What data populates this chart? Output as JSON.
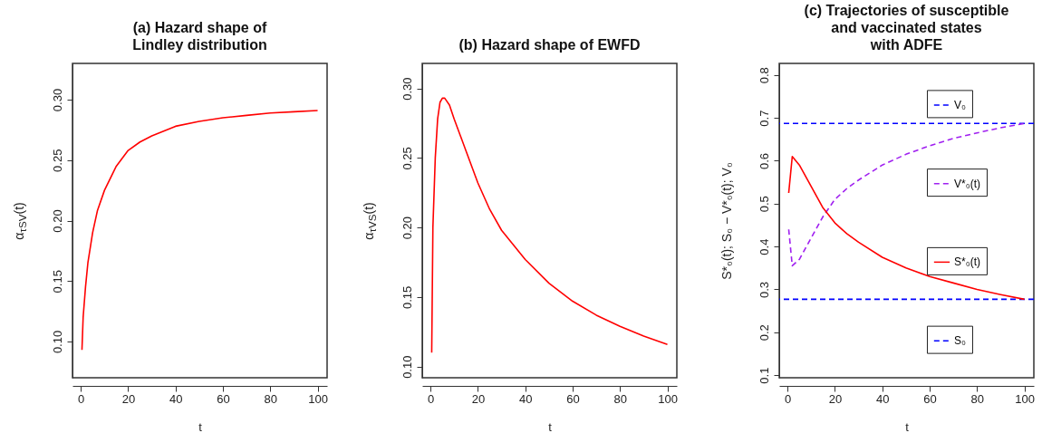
{
  "chart_data": [
    {
      "type": "line",
      "title": "(a) Hazard shape of\nLindley distribution",
      "xlabel": "t",
      "ylabel": "α$_{τSV}$(t)",
      "x": [
        0.5,
        1,
        2,
        3,
        5,
        7,
        10,
        15,
        20,
        25,
        30,
        40,
        50,
        60,
        70,
        80,
        90,
        100
      ],
      "series": [
        {
          "color": "#ff0000",
          "values": [
            0.093,
            0.12,
            0.145,
            0.165,
            0.19,
            0.208,
            0.225,
            0.245,
            0.258,
            0.265,
            0.27,
            0.278,
            0.282,
            0.285,
            0.287,
            0.289,
            0.29,
            0.291
          ]
        }
      ],
      "xlim": [
        -3.5,
        104
      ],
      "ylim": [
        0.07,
        0.33
      ],
      "xticks": [
        0,
        20,
        40,
        60,
        80,
        100
      ],
      "yticks": [
        {
          "value": 0.1,
          "label": "0.10"
        },
        0.15,
        {
          "value": 0.2,
          "label": "0.20"
        },
        0.25,
        {
          "value": 0.3,
          "label": "0.30"
        }
      ]
    },
    {
      "type": "line",
      "title": "(b) Hazard shape of EWFD",
      "xlabel": "t",
      "ylabel": "α$_{τVS}$(t)",
      "x": [
        0.5,
        1,
        2,
        3,
        4,
        5,
        6,
        8,
        10,
        15,
        20,
        25,
        30,
        40,
        50,
        60,
        70,
        80,
        90,
        100
      ],
      "series": [
        {
          "color": "#ff0000",
          "values": [
            0.11,
            0.2,
            0.25,
            0.278,
            0.29,
            0.293,
            0.293,
            0.288,
            0.278,
            0.255,
            0.232,
            0.213,
            0.198,
            0.177,
            0.16,
            0.147,
            0.137,
            0.129,
            0.122,
            0.116
          ]
        }
      ],
      "xlim": [
        -3.5,
        104
      ],
      "ylim": [
        0.092,
        0.318
      ],
      "xticks": [
        0,
        20,
        40,
        60,
        80,
        100
      ],
      "yticks": [
        {
          "value": 0.1,
          "label": "0.10"
        },
        0.15,
        {
          "value": 0.2,
          "label": "0.20"
        },
        0.25,
        {
          "value": 0.3,
          "label": "0.30"
        }
      ]
    },
    {
      "type": "line",
      "title": "(c) Trajectories of susceptible\nand vaccinated states\nwith ADFE",
      "xlabel": "t",
      "ylabel": "S*₀(t); S₀ − V*₀(t); V₀",
      "x": [
        0.5,
        2,
        5,
        10,
        15,
        20,
        25,
        30,
        40,
        50,
        60,
        70,
        80,
        90,
        100
      ],
      "series": [
        {
          "name": "V*₀(t)",
          "color": "#a020f0",
          "line_style": "dashed",
          "values": [
            0.44,
            0.355,
            0.37,
            0.42,
            0.47,
            0.51,
            0.535,
            0.555,
            0.59,
            0.615,
            0.635,
            0.652,
            0.665,
            0.677,
            0.687
          ]
        },
        {
          "name": "S*₀(t)",
          "color": "#ff0000",
          "line_style": "solid",
          "values": [
            0.525,
            0.61,
            0.59,
            0.54,
            0.49,
            0.455,
            0.43,
            0.41,
            0.375,
            0.35,
            0.33,
            0.315,
            0.3,
            0.288,
            0.277
          ]
        }
      ],
      "ref_lines": [
        {
          "axis": "y",
          "value": 0.687,
          "label": "V₀",
          "color": "#0000ff",
          "line_style": "dashed"
        },
        {
          "axis": "y",
          "value": 0.277,
          "label": "S₀",
          "color": "#0000ff",
          "line_style": "dashed"
        }
      ],
      "legend": "right",
      "xlim": [
        -3.5,
        104
      ],
      "ylim": [
        0.094,
        0.827
      ],
      "xticks": [
        0,
        20,
        40,
        60,
        80,
        100
      ],
      "yticks": [
        0.1,
        0.2,
        0.3,
        0.4,
        0.5,
        0.6,
        0.7,
        0.8
      ]
    }
  ]
}
